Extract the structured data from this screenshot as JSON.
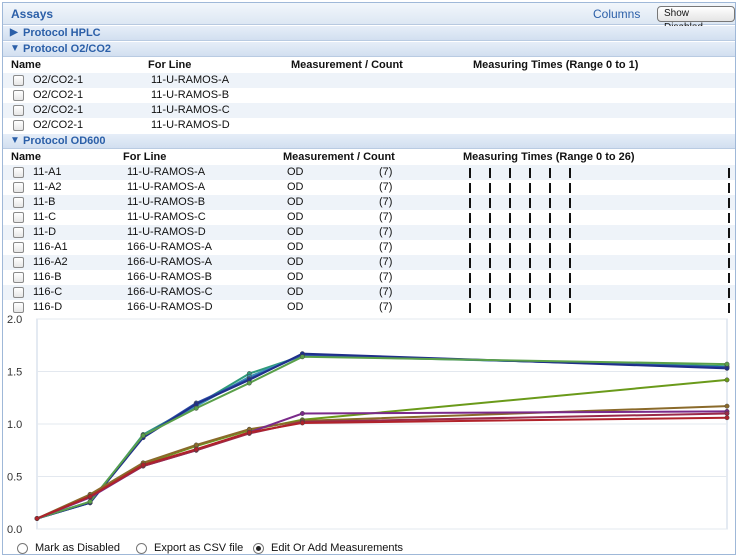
{
  "header": {
    "title": "Assays",
    "columns_link": "Columns",
    "show_disabled_button": "Show Disabled"
  },
  "protocols": {
    "hplc": {
      "arrow": "▶",
      "title": "Protocol HPLC"
    },
    "o2co2": {
      "arrow": "▼",
      "title": "Protocol O2/CO2",
      "columns": [
        "Name",
        "For Line",
        "Measurement / Count",
        "Measuring Times (Range 0 to 1)"
      ],
      "rows": [
        {
          "name": "O2/CO2-1",
          "line": "11-U-RAMOS-A"
        },
        {
          "name": "O2/CO2-1",
          "line": "11-U-RAMOS-B"
        },
        {
          "name": "O2/CO2-1",
          "line": "11-U-RAMOS-C"
        },
        {
          "name": "O2/CO2-1",
          "line": "11-U-RAMOS-D"
        }
      ]
    },
    "od600": {
      "arrow": "▼",
      "title": "Protocol OD600",
      "columns": [
        "Name",
        "For Line",
        "Measurement / Count",
        "Measuring Times (Range 0 to 26)"
      ],
      "measuring_times": [
        0,
        2,
        4,
        6,
        8,
        10,
        26
      ],
      "range_max": 26,
      "rows": [
        {
          "name": "11-A1",
          "line": "11-U-RAMOS-A",
          "measurement": "OD",
          "count": "(7)"
        },
        {
          "name": "11-A2",
          "line": "11-U-RAMOS-A",
          "measurement": "OD",
          "count": "(7)"
        },
        {
          "name": "11-B",
          "line": "11-U-RAMOS-B",
          "measurement": "OD",
          "count": "(7)"
        },
        {
          "name": "11-C",
          "line": "11-U-RAMOS-C",
          "measurement": "OD",
          "count": "(7)"
        },
        {
          "name": "11-D",
          "line": "11-U-RAMOS-D",
          "measurement": "OD",
          "count": "(7)"
        },
        {
          "name": "116-A1",
          "line": "166-U-RAMOS-A",
          "measurement": "OD",
          "count": "(7)"
        },
        {
          "name": "116-A2",
          "line": "166-U-RAMOS-A",
          "measurement": "OD",
          "count": "(7)"
        },
        {
          "name": "116-B",
          "line": "166-U-RAMOS-B",
          "measurement": "OD",
          "count": "(7)"
        },
        {
          "name": "116-C",
          "line": "166-U-RAMOS-C",
          "measurement": "OD",
          "count": "(7)"
        },
        {
          "name": "116-D",
          "line": "166-U-RAMOS-D",
          "measurement": "OD",
          "count": "(7)"
        }
      ]
    }
  },
  "chart_data": {
    "type": "line",
    "title": "",
    "xlabel": "",
    "ylabel": "",
    "xlim": [
      0,
      26
    ],
    "ylim": [
      0,
      2.0
    ],
    "yticks": [
      "0.0",
      "0.5",
      "1.0",
      "1.5",
      "2.0"
    ],
    "grid": true,
    "x": [
      0,
      2,
      4,
      6,
      8,
      10,
      26
    ],
    "series": [
      {
        "color": "#2e9b7a",
        "values": [
          0.1,
          0.25,
          0.9,
          1.18,
          1.48,
          1.65,
          1.55
        ]
      },
      {
        "color": "#3a8fb5",
        "values": [
          0.1,
          0.26,
          0.89,
          1.17,
          1.45,
          1.66,
          1.54
        ]
      },
      {
        "color": "#2c4fa8",
        "values": [
          0.1,
          0.25,
          0.88,
          1.2,
          1.43,
          1.66,
          1.54
        ]
      },
      {
        "color": "#1f2f8a",
        "values": [
          0.1,
          0.25,
          0.87,
          1.19,
          1.42,
          1.67,
          1.53
        ]
      },
      {
        "color": "#5aa04a",
        "values": [
          0.1,
          0.26,
          0.89,
          1.15,
          1.39,
          1.64,
          1.57
        ]
      },
      {
        "color": "#6a9a1a",
        "values": [
          0.1,
          0.32,
          0.62,
          0.79,
          0.94,
          1.04,
          1.42
        ]
      },
      {
        "color": "#8a6a2a",
        "values": [
          0.1,
          0.33,
          0.63,
          0.8,
          0.95,
          1.03,
          1.17
        ]
      },
      {
        "color": "#7a2a8a",
        "values": [
          0.1,
          0.3,
          0.6,
          0.75,
          0.92,
          1.1,
          1.12
        ]
      },
      {
        "color": "#9a2a4a",
        "values": [
          0.1,
          0.31,
          0.6,
          0.75,
          0.91,
          1.02,
          1.1
        ]
      },
      {
        "color": "#b0222a",
        "values": [
          0.1,
          0.31,
          0.61,
          0.76,
          0.92,
          1.01,
          1.06
        ]
      }
    ]
  },
  "footer": {
    "options": [
      {
        "label": "Mark as Disabled",
        "selected": false
      },
      {
        "label": "Export as CSV file",
        "selected": false
      },
      {
        "label": "Edit Or Add Measurements",
        "selected": true
      }
    ]
  }
}
